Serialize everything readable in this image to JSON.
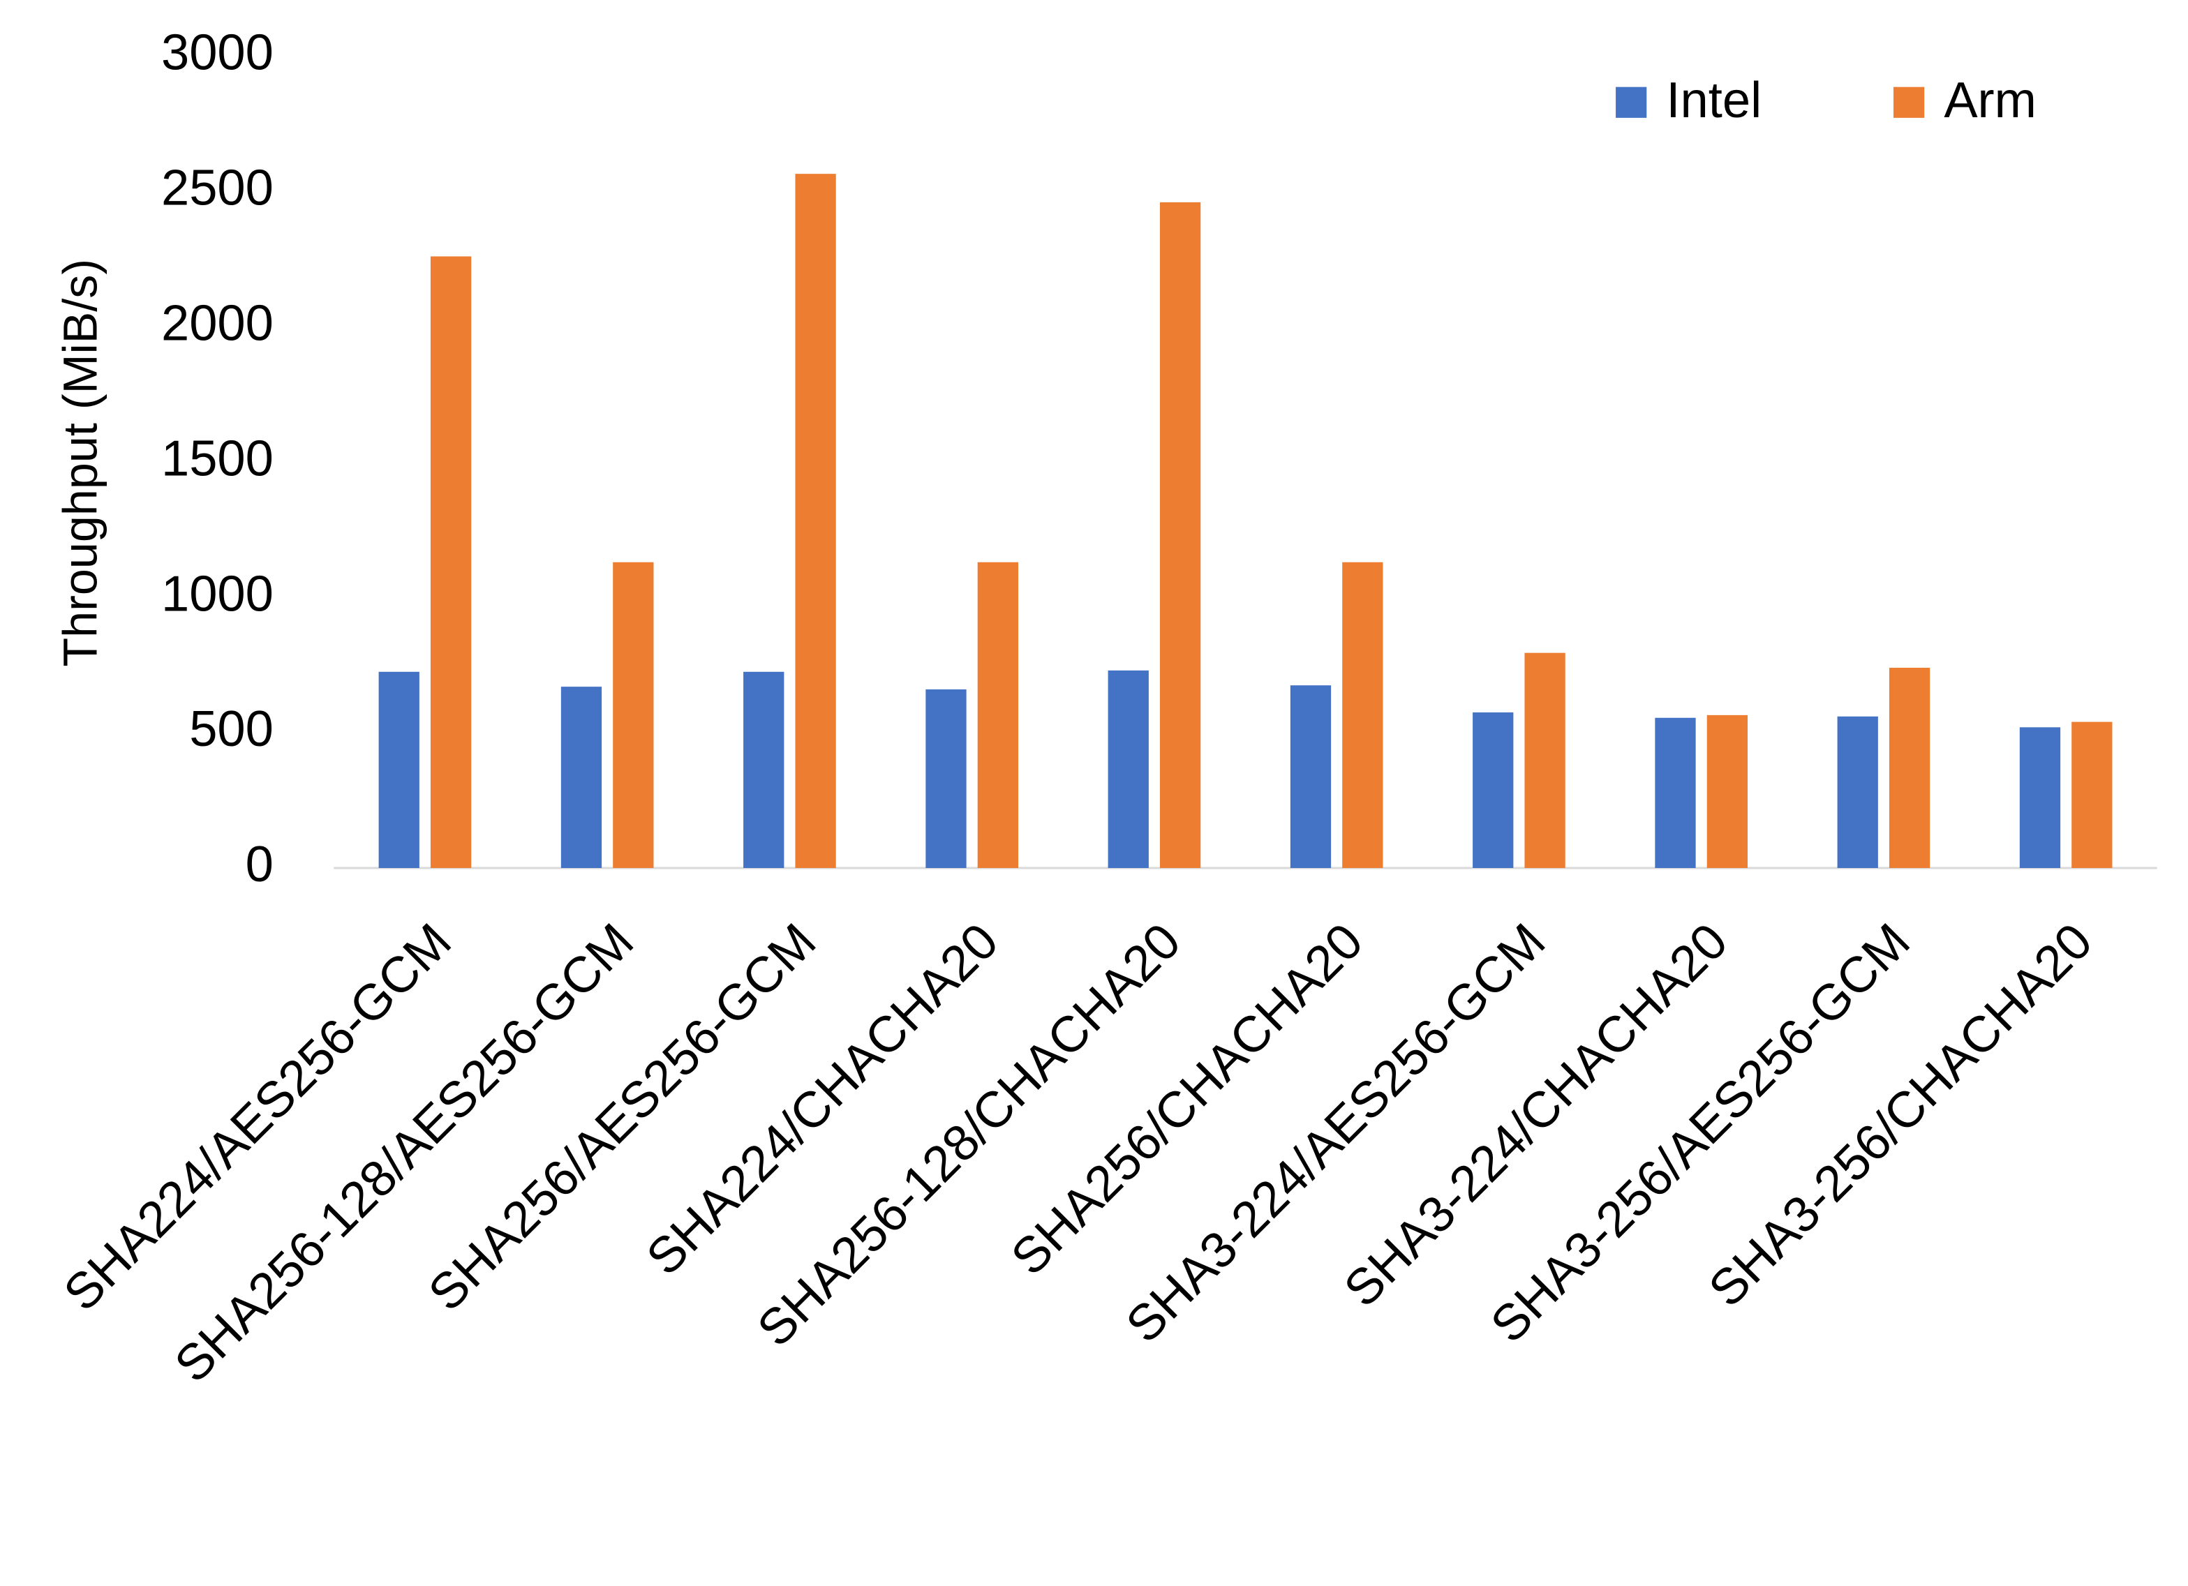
{
  "chart_data": {
    "type": "bar",
    "y_label": "Throughput (MiB/s)",
    "categories": [
      "SHA224/AES256-GCM",
      "SHA256-128/AES256-GCM",
      "SHA256/AES256-GCM",
      "SHA224/CHACHA20",
      "SHA256-128/CHACHA20",
      "SHA256/CHACHA20",
      "SHA3-224/AES256-GCM",
      "SHA3-224/CHACHA20",
      "SHA3-256/AES256-GCM",
      "SHA3-256/CHACHA20"
    ],
    "series": [
      {
        "name": "Intel",
        "color": "#4472c4",
        "values": [
          725,
          670,
          725,
          660,
          730,
          675,
          575,
          555,
          560,
          520
        ]
      },
      {
        "name": "Arm",
        "color": "#ed7d31",
        "values": [
          2260,
          1130,
          2565,
          1130,
          2460,
          1130,
          795,
          565,
          740,
          540
        ]
      }
    ],
    "ylim": [
      0,
      3000
    ],
    "yticks": [
      0,
      500,
      1000,
      1500,
      2000,
      2500,
      3000
    ],
    "grid": false,
    "legend": "top-right"
  }
}
